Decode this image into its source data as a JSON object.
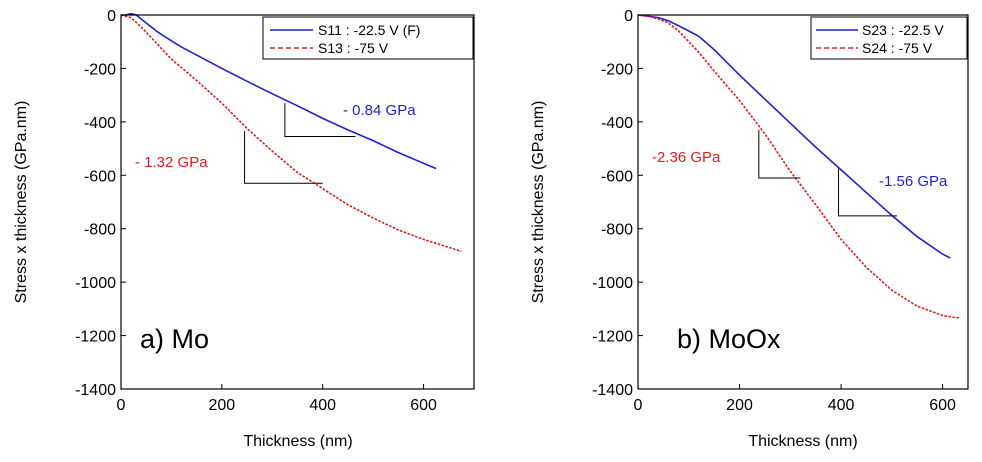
{
  "colors": {
    "blue": "#1f1fd6",
    "red": "#e3191c",
    "black": "#000000"
  },
  "chart_data": [
    {
      "type": "line",
      "panel_label": "a) Mo",
      "xlabel": "Thickness (nm)",
      "ylabel": "Stress x thickness (GPa.nm)",
      "xlim": [
        0,
        700
      ],
      "ylim": [
        -1400,
        0
      ],
      "xticks": [
        0,
        200,
        400,
        600
      ],
      "yticks": [
        0,
        -200,
        -400,
        -600,
        -800,
        -1000,
        -1200,
        -1400
      ],
      "legend_position": "top-right",
      "series": [
        {
          "name": "S11 : -22.5 V (F)",
          "color": "#1f1fd6",
          "dash": "solid",
          "x": [
            0,
            10,
            20,
            30,
            40,
            50,
            60,
            70,
            78,
            78,
            90,
            120,
            150,
            200,
            250,
            300,
            350,
            400,
            450,
            500,
            550,
            600,
            625
          ],
          "y": [
            0,
            0,
            5,
            0,
            -15,
            -30,
            -45,
            -60,
            -70,
            -70,
            -85,
            -120,
            -150,
            -200,
            -248,
            -295,
            -340,
            -387,
            -430,
            -470,
            -515,
            -555,
            -575
          ]
        },
        {
          "name": "S13 : -75 V",
          "color": "#e3191c",
          "dash": "dashed",
          "x": [
            0,
            10,
            20,
            40,
            60,
            80,
            100,
            150,
            200,
            250,
            300,
            350,
            400,
            450,
            500,
            550,
            600,
            650,
            675
          ],
          "y": [
            0,
            -5,
            -10,
            -45,
            -85,
            -125,
            -165,
            -245,
            -330,
            -425,
            -510,
            -590,
            -650,
            -710,
            -760,
            -805,
            -840,
            -870,
            -885
          ]
        }
      ],
      "slopes": [
        {
          "label": "- 0.84 GPa",
          "color": "#1f1fd6",
          "x1": 325,
          "x2": 465,
          "y_top": -330,
          "y_bottom": -455
        },
        {
          "label": "- 1.32 GPa",
          "color": "#e3191c",
          "x1": 245,
          "x2": 400,
          "y_top": -435,
          "y_bottom": -630
        }
      ]
    },
    {
      "type": "line",
      "panel_label": "b) MoOx",
      "xlabel": "Thickness (nm)",
      "ylabel": "Stress x thickness (GPa.nm)",
      "xlim": [
        0,
        650
      ],
      "ylim": [
        -1400,
        0
      ],
      "xticks": [
        0,
        200,
        400,
        600
      ],
      "yticks": [
        0,
        -200,
        -400,
        -600,
        -800,
        -1000,
        -1200,
        -1400
      ],
      "legend_position": "top-right",
      "series": [
        {
          "name": "S23 : -22.5 V",
          "color": "#1f1fd6",
          "dash": "solid",
          "x": [
            0,
            20,
            40,
            60,
            80,
            100,
            120,
            150,
            200,
            250,
            300,
            350,
            400,
            450,
            500,
            550,
            600,
            615
          ],
          "y": [
            0,
            -5,
            -10,
            -22,
            -40,
            -60,
            -80,
            -130,
            -225,
            -315,
            -405,
            -495,
            -580,
            -665,
            -750,
            -830,
            -895,
            -910
          ]
        },
        {
          "name": "S24 : -75 V",
          "color": "#e3191c",
          "dash": "dashed",
          "x": [
            0,
            20,
            40,
            60,
            80,
            100,
            120,
            150,
            200,
            250,
            300,
            350,
            400,
            450,
            500,
            550,
            600,
            635
          ],
          "y": [
            0,
            -5,
            -15,
            -30,
            -60,
            -100,
            -140,
            -210,
            -320,
            -445,
            -585,
            -710,
            -840,
            -945,
            -1030,
            -1090,
            -1125,
            -1135
          ]
        }
      ],
      "slopes": [
        {
          "label": "-2.36 GPa",
          "color": "#e3191c",
          "x1": 238,
          "x2": 320,
          "y_top": -430,
          "y_bottom": -610
        },
        {
          "label": "-1.56 GPa",
          "color": "#1f1fd6",
          "x1": 395,
          "x2": 510,
          "y_top": -575,
          "y_bottom": -752
        }
      ]
    }
  ]
}
